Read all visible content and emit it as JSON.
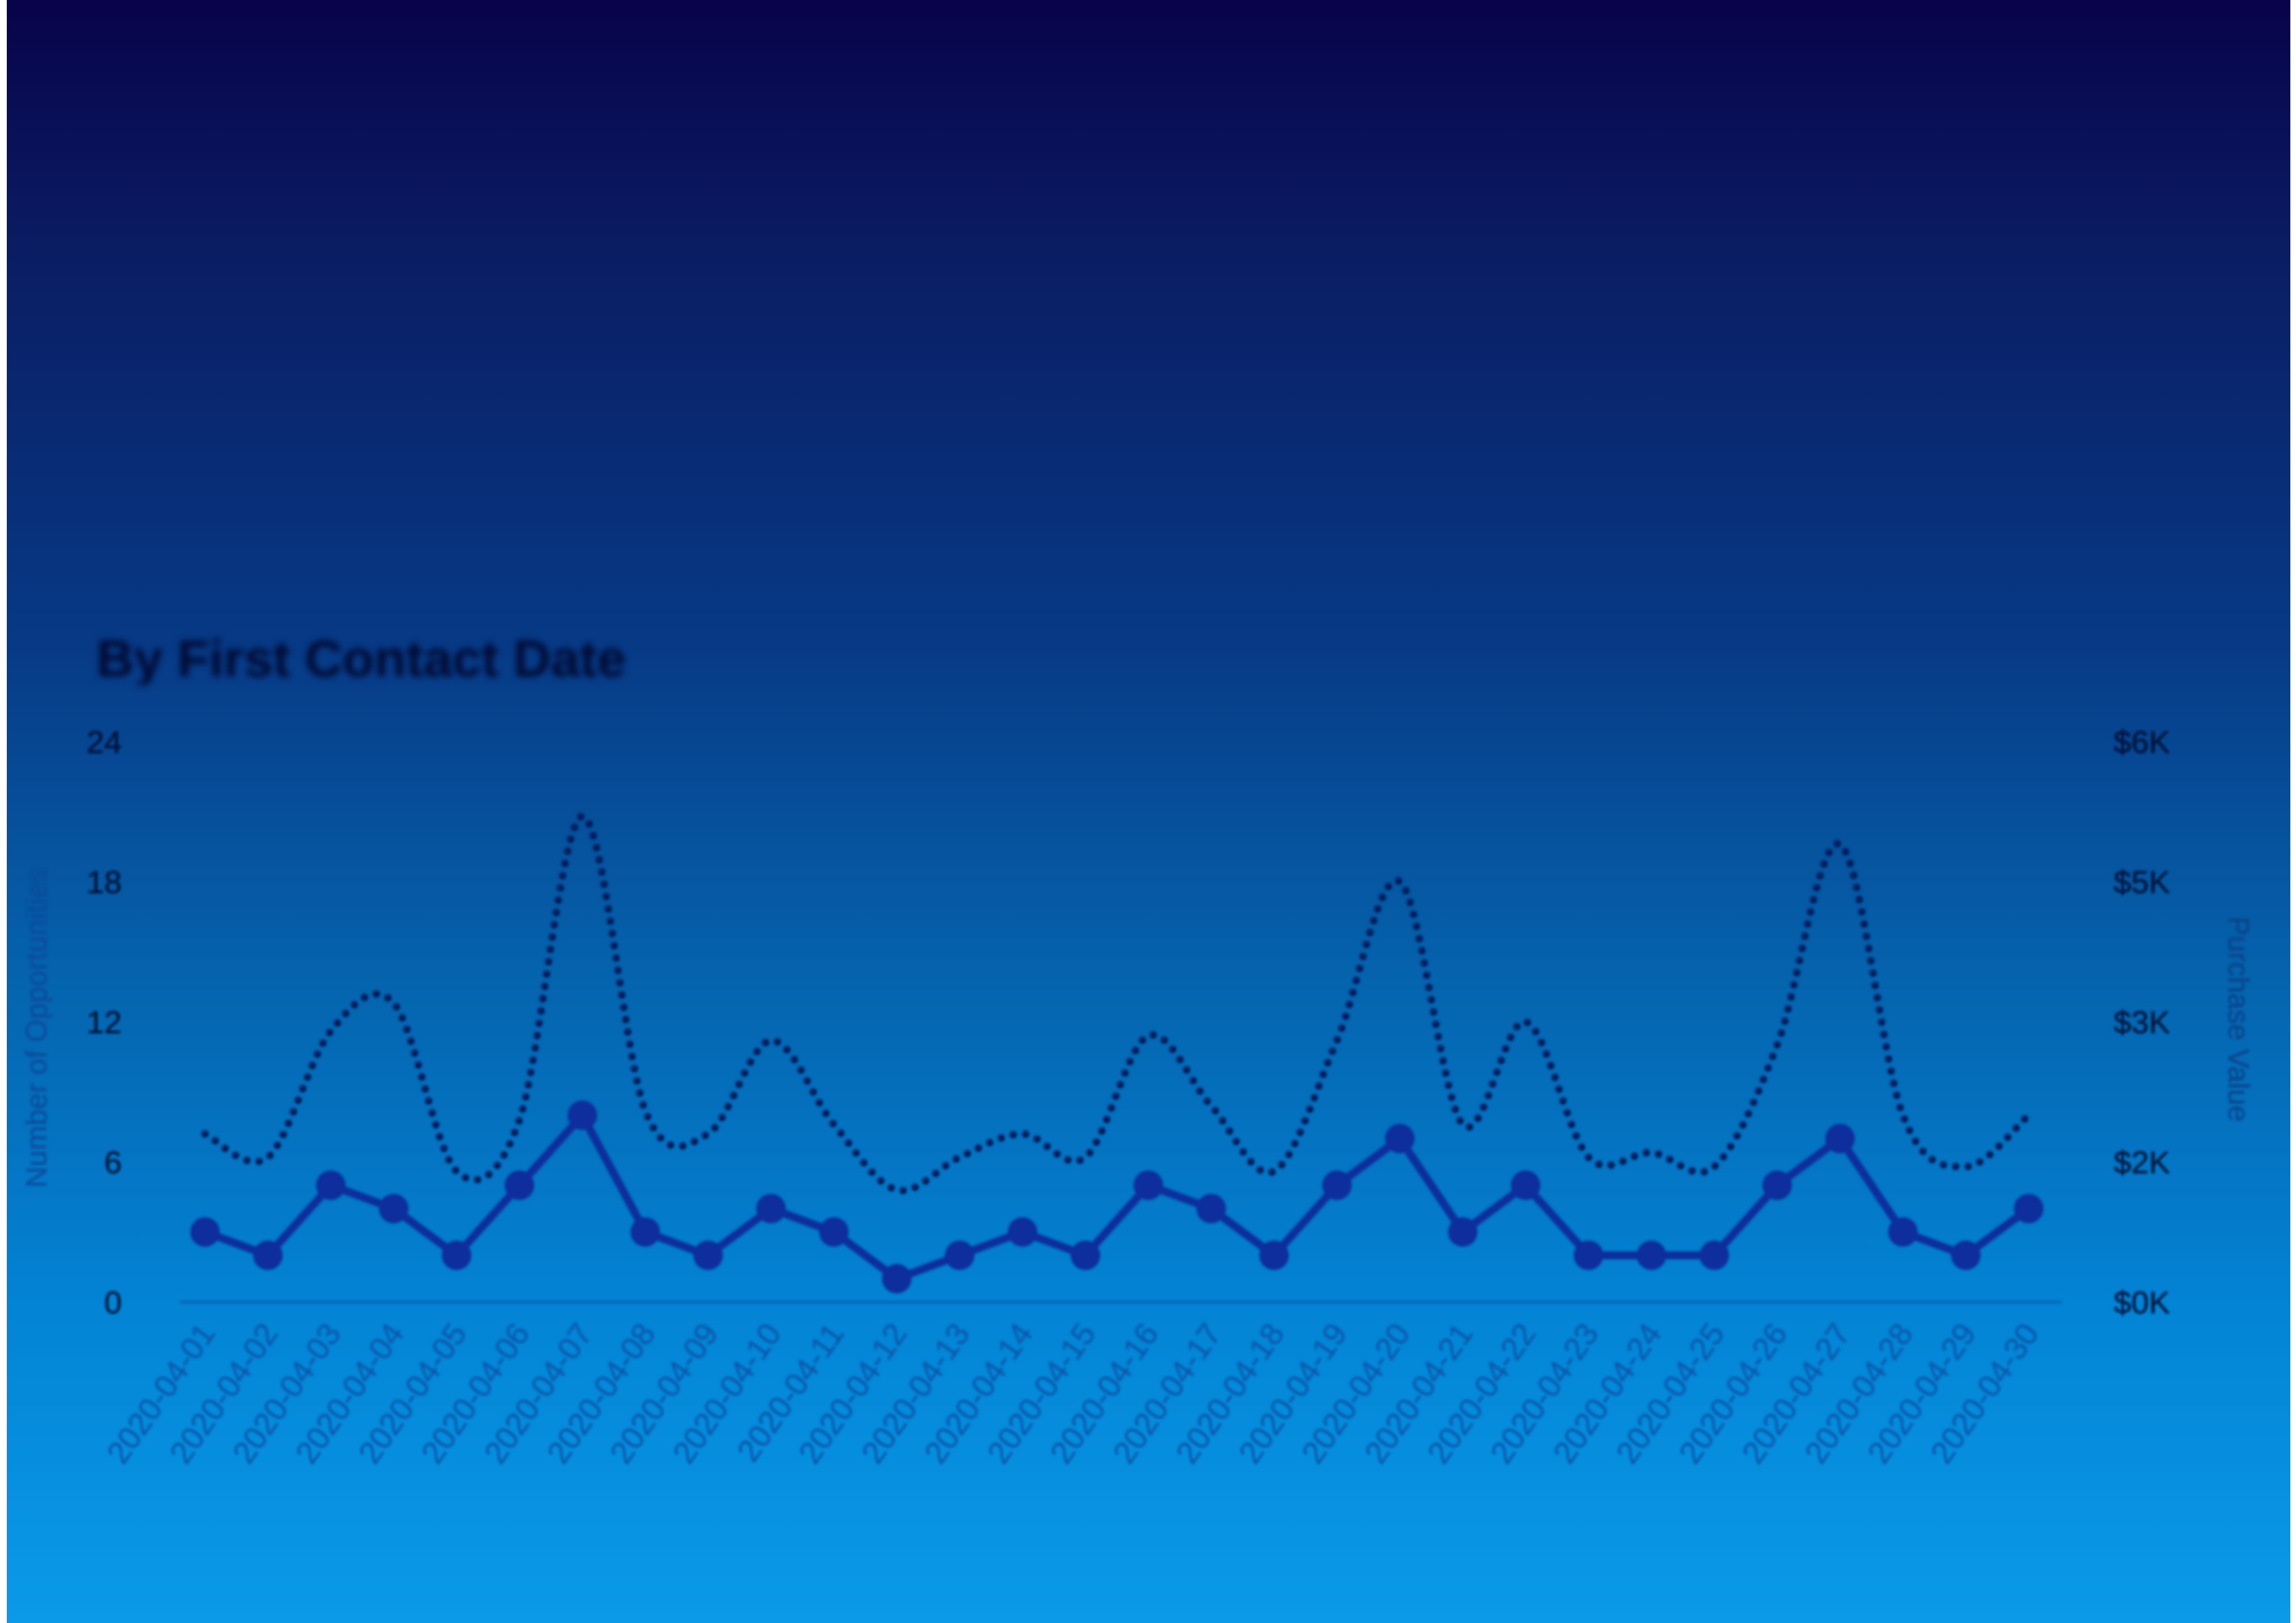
{
  "chart_data": {
    "type": "line",
    "subtitle": "By First Contact Date",
    "categories": [
      "2020-04-01",
      "2020-04-02",
      "2020-04-03",
      "2020-04-04",
      "2020-04-05",
      "2020-04-06",
      "2020-04-07",
      "2020-04-08",
      "2020-04-09",
      "2020-04-10",
      "2020-04-11",
      "2020-04-12",
      "2020-04-13",
      "2020-04-14",
      "2020-04-15",
      "2020-04-16",
      "2020-04-17",
      "2020-04-18",
      "2020-04-19",
      "2020-04-20",
      "2020-04-21",
      "2020-04-22",
      "2020-04-23",
      "2020-04-24",
      "2020-04-25",
      "2020-04-26",
      "2020-04-27",
      "2020-04-28",
      "2020-04-29",
      "2020-04-30"
    ],
    "series": [
      {
        "axis": "left",
        "style": "solid-markers",
        "color": "#0a2f9c",
        "values": [
          3,
          2,
          5,
          4,
          2,
          5,
          8,
          3,
          2,
          4,
          3,
          1,
          2,
          3,
          2,
          5,
          4,
          2,
          5,
          7,
          3,
          5,
          2,
          2,
          2,
          5,
          7,
          3,
          2,
          4
        ]
      },
      {
        "axis": "right",
        "style": "dotted",
        "color": "#061a5c",
        "values": [
          1800,
          1550,
          2900,
          3200,
          1400,
          1950,
          5200,
          2050,
          1800,
          2800,
          1900,
          1200,
          1550,
          1800,
          1550,
          2850,
          2100,
          1400,
          2800,
          4500,
          1900,
          3000,
          1550,
          1600,
          1450,
          2750,
          4900,
          2000,
          1450,
          2000
        ]
      }
    ],
    "y_left": {
      "label": "Number of Opportunities",
      "ticks": [
        "0",
        "6",
        "12",
        "18",
        "24"
      ],
      "ylim": [
        0,
        24
      ]
    },
    "y_right": {
      "label": "Purchase Value",
      "ticks": [
        "$0K",
        "$2K",
        "$3K",
        "$5K",
        "$6K"
      ],
      "ylim": [
        0,
        6000
      ]
    },
    "grid": false,
    "legend": "none"
  }
}
